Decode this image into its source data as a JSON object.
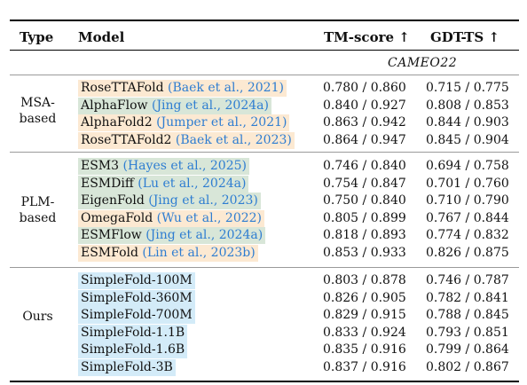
{
  "header": {
    "type": "Type",
    "model": "Model",
    "tm_score": "TM-score ↑",
    "gdt_ts": "GDT-TS ↑"
  },
  "dataset": "CAMEO22",
  "groups": [
    {
      "type_lines": [
        "MSA-",
        "based"
      ],
      "rows": [
        {
          "model": "RoseTTAFold",
          "cite": "(Baek et al., 2021)",
          "tm": "0.780 / 0.860",
          "gdt": "0.715 / 0.775",
          "color": "#fce9d2"
        },
        {
          "model": "AlphaFlow",
          "cite": "(Jing et al., 2024a)",
          "tm": "0.840 / 0.927",
          "gdt": "0.808 / 0.853",
          "color": "#d8e6d8"
        },
        {
          "model": "AlphaFold2",
          "cite": "(Jumper et al., 2021)",
          "tm": "0.863 / 0.942",
          "gdt": "0.844 / 0.903",
          "color": "#fce9d2"
        },
        {
          "model": "RoseTTAFold2",
          "cite": "(Baek et al., 2023)",
          "tm": "0.864 / 0.947",
          "gdt": "0.845 / 0.904",
          "color": "#fce9d2"
        }
      ]
    },
    {
      "type_lines": [
        "PLM-",
        "based"
      ],
      "rows": [
        {
          "model": "ESM3",
          "cite": "(Hayes et al., 2025)",
          "tm": "0.746 / 0.840",
          "gdt": "0.694 / 0.758",
          "color": "#d8e6d8"
        },
        {
          "model": "ESMDiff",
          "cite": "(Lu et al., 2024a)",
          "tm": "0.754 / 0.847",
          "gdt": "0.701 / 0.760",
          "color": "#d8e6d8"
        },
        {
          "model": "EigenFold",
          "cite": "(Jing et al., 2023)",
          "tm": "0.750 / 0.840",
          "gdt": "0.710 / 0.790",
          "color": "#d8e6d8"
        },
        {
          "model": "OmegaFold",
          "cite": "(Wu et al., 2022)",
          "tm": "0.805 / 0.899",
          "gdt": "0.767 / 0.844",
          "color": "#fce9d2"
        },
        {
          "model": "ESMFlow",
          "cite": "(Jing et al., 2024a)",
          "tm": "0.818 / 0.893",
          "gdt": "0.774 / 0.832",
          "color": "#d8e6d8"
        },
        {
          "model": "ESMFold",
          "cite": "(Lin et al., 2023b)",
          "tm": "0.853 / 0.933",
          "gdt": "0.826 / 0.875",
          "color": "#fce9d2"
        }
      ]
    },
    {
      "type_lines": [
        "Ours"
      ],
      "rows": [
        {
          "model": "SimpleFold-100M",
          "cite": "",
          "tm": "0.803 / 0.878",
          "gdt": "0.746 / 0.787",
          "color": "#d3ebf8"
        },
        {
          "model": "SimpleFold-360M",
          "cite": "",
          "tm": "0.826 / 0.905",
          "gdt": "0.782 / 0.841",
          "color": "#d3ebf8"
        },
        {
          "model": "SimpleFold-700M",
          "cite": "",
          "tm": "0.829 / 0.915",
          "gdt": "0.788 / 0.845",
          "color": "#d3ebf8"
        },
        {
          "model": "SimpleFold-1.1B",
          "cite": "",
          "tm": "0.833 / 0.924",
          "gdt": "0.793 / 0.851",
          "color": "#d3ebf8"
        },
        {
          "model": "SimpleFold-1.6B",
          "cite": "",
          "tm": "0.835 / 0.916",
          "gdt": "0.799 / 0.864",
          "color": "#d3ebf8"
        },
        {
          "model": "SimpleFold-3B",
          "cite": "",
          "tm": "0.837 / 0.916",
          "gdt": "0.802 / 0.867",
          "color": "#d3ebf8"
        }
      ]
    }
  ]
}
